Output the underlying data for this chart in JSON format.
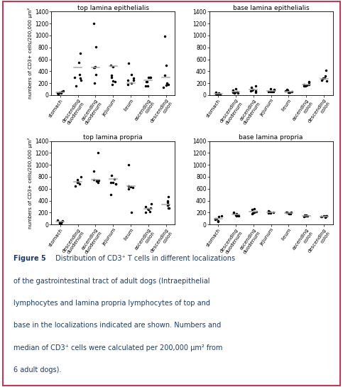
{
  "titles": [
    "top lamina epithelialis",
    "base lamina epithelialis",
    "top lamina propria",
    "base lamina propria"
  ],
  "categories": [
    "stomach",
    "descending\nduodenum",
    "ascending\nduodenum",
    "jejunum",
    "ileum",
    "ascending\ncolon",
    "descending\ncolon"
  ],
  "ylabel": "numbers of CD3+ cells/200,000 μm²",
  "ylim": [
    0,
    1400
  ],
  "yticks": [
    0,
    200,
    400,
    600,
    800,
    1000,
    1200,
    1400
  ],
  "data": {
    "top lamina epithelialis": [
      [
        50,
        70,
        60,
        30,
        20,
        10,
        40
      ],
      [
        700,
        550,
        350,
        300,
        250,
        280,
        150
      ],
      [
        1200,
        460,
        460,
        810,
        475,
        200,
        350
      ],
      [
        500,
        330,
        180,
        470,
        230,
        300,
        240
      ],
      [
        350,
        250,
        200,
        540,
        175,
        250,
        280
      ],
      [
        300,
        220,
        150,
        300,
        150,
        220,
        300
      ],
      [
        130,
        180,
        330,
        200,
        990,
        160,
        500
      ]
    ],
    "base lamina epithelialis": [
      [
        50,
        30,
        20,
        15,
        10,
        5,
        25
      ],
      [
        110,
        80,
        60,
        50,
        40,
        30,
        50
      ],
      [
        150,
        130,
        90,
        80,
        70,
        50,
        70
      ],
      [
        100,
        110,
        80,
        60,
        55,
        60,
        60
      ],
      [
        80,
        90,
        70,
        50,
        45,
        50,
        55
      ],
      [
        220,
        210,
        160,
        180,
        150,
        180,
        150
      ],
      [
        420,
        320,
        280,
        270,
        240,
        250,
        280
      ]
    ],
    "top lamina propria": [
      [
        60,
        70,
        50,
        30,
        20,
        15,
        40
      ],
      [
        750,
        720,
        680,
        800,
        700,
        720,
        650
      ],
      [
        900,
        740,
        700,
        1200,
        740,
        750,
        730
      ],
      [
        500,
        700,
        680,
        820,
        760,
        680,
        700
      ],
      [
        200,
        650,
        600,
        1000,
        640,
        630,
        620
      ],
      [
        350,
        280,
        260,
        250,
        200,
        220,
        300
      ],
      [
        460,
        320,
        280,
        400,
        370,
        280,
        340
      ]
    ],
    "base lamina propria": [
      [
        150,
        130,
        100,
        80,
        60,
        50,
        100
      ],
      [
        200,
        190,
        175,
        160,
        150,
        140,
        160
      ],
      [
        260,
        250,
        220,
        200,
        190,
        180,
        200
      ],
      [
        230,
        220,
        200,
        210,
        195,
        200,
        190
      ],
      [
        200,
        200,
        190,
        200,
        185,
        190,
        185
      ],
      [
        160,
        155,
        140,
        150,
        130,
        145,
        140
      ],
      [
        150,
        140,
        130,
        140,
        120,
        135,
        130
      ]
    ]
  },
  "medians": {
    "top lamina epithelialis": [
      50,
      460,
      460,
      490,
      200,
      250,
      300
    ],
    "base lamina epithelialis": [
      25,
      60,
      90,
      70,
      60,
      180,
      270
    ],
    "top lamina propria": [
      50,
      720,
      750,
      760,
      640,
      260,
      340
    ],
    "base lamina propria": [
      100,
      165,
      210,
      200,
      190,
      145,
      135
    ]
  },
  "figure_caption_bold": "Figure 5",
  "caption_text": " Distribution of CD3⁺ T cells in different localizations of the gastrointestinal tract of adult dogs (Intraepithelial lymphocytes and lamina propria lymphocytes of top and base in the localizations indicated are shown. Numbers and median of CD3⁺ cells were calculated per 200,000 μm² from 6 adult dogs).",
  "border_color": "#c0395a",
  "text_color": "#1a3a6e",
  "point_color": "#000000",
  "median_color": "#aaaaaa"
}
